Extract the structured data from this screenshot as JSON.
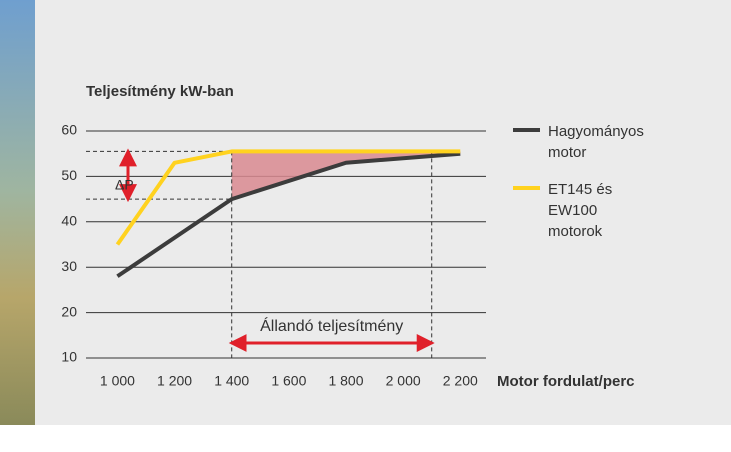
{
  "chart_data": {
    "type": "line",
    "title": "Teljesítmény kW-ban",
    "x_label": "Motor fordulat/perc",
    "series": [
      {
        "name": "Hagyományos motor",
        "color": "#3c3c3c",
        "x": [
          1000,
          1400,
          1800,
          2200
        ],
        "values": [
          28,
          45,
          53,
          55
        ]
      },
      {
        "name": "ET145 és EW100 motorok",
        "color": "#ffd21f",
        "x": [
          1000,
          1200,
          1400,
          2200
        ],
        "values": [
          35,
          53,
          55.5,
          55.5
        ]
      }
    ],
    "xlim": [
      890,
      2290
    ],
    "ylim": [
      10,
      60
    ],
    "xticks": [
      {
        "value": 1000,
        "label": "1 000"
      },
      {
        "value": 1200,
        "label": "1 200"
      },
      {
        "value": 1400,
        "label": "1 400"
      },
      {
        "value": 1600,
        "label": "1 600"
      },
      {
        "value": 1800,
        "label": "1 800"
      },
      {
        "value": 2000,
        "label": "2 000"
      },
      {
        "value": 2200,
        "label": "2 200"
      }
    ],
    "yticks": [
      10,
      20,
      30,
      40,
      50,
      60
    ],
    "grid": true,
    "delta_p": {
      "label": "ΔP",
      "range": [
        45,
        55.5
      ]
    },
    "constant_power": {
      "label": "Állandó teljesítmény",
      "range": [
        1400,
        2100
      ]
    },
    "annotation_color": "#e0202a",
    "gap_color": "#d98a90"
  }
}
